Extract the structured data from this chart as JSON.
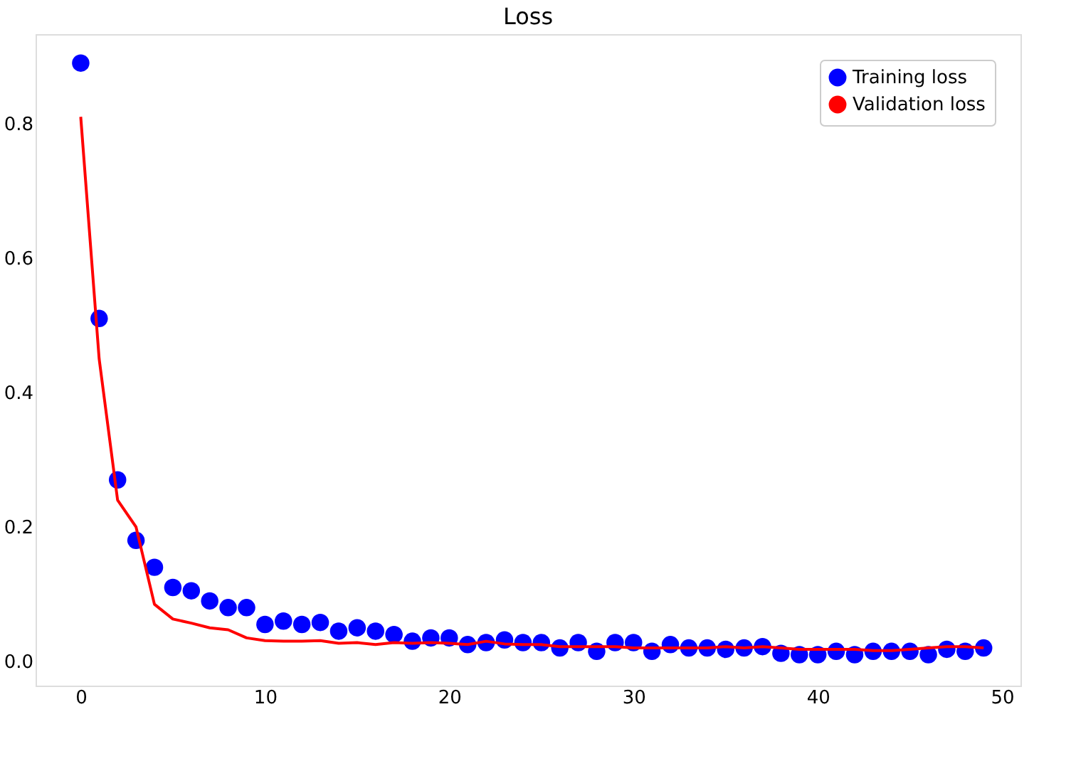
{
  "chart_data": {
    "type": "scatter",
    "title": "Loss",
    "x": [
      0,
      1,
      2,
      3,
      4,
      5,
      6,
      7,
      8,
      9,
      10,
      11,
      12,
      13,
      14,
      15,
      16,
      17,
      18,
      19,
      20,
      21,
      22,
      23,
      24,
      25,
      26,
      27,
      28,
      29,
      30,
      31,
      32,
      33,
      34,
      35,
      36,
      37,
      38,
      39,
      40,
      41,
      42,
      43,
      44,
      45,
      46,
      47,
      48,
      49
    ],
    "series": [
      {
        "name": "Training loss",
        "color": "#0000ff",
        "marker": "circle",
        "values": [
          0.89,
          0.51,
          0.27,
          0.18,
          0.14,
          0.11,
          0.105,
          0.09,
          0.08,
          0.08,
          0.055,
          0.06,
          0.055,
          0.058,
          0.045,
          0.05,
          0.045,
          0.04,
          0.03,
          0.035,
          0.035,
          0.025,
          0.028,
          0.032,
          0.028,
          0.028,
          0.02,
          0.028,
          0.015,
          0.028,
          0.028,
          0.015,
          0.025,
          0.02,
          0.02,
          0.018,
          0.02,
          0.022,
          0.012,
          0.01,
          0.01,
          0.015,
          0.01,
          0.015,
          0.015,
          0.015,
          0.01,
          0.018,
          0.015,
          0.02
        ]
      },
      {
        "name": "Validation loss",
        "color": "#ff0000",
        "type": "line",
        "line_style": "solid",
        "values": [
          0.81,
          0.45,
          0.24,
          0.2,
          0.085,
          0.063,
          0.057,
          0.05,
          0.047,
          0.035,
          0.031,
          0.03,
          0.03,
          0.031,
          0.027,
          0.028,
          0.025,
          0.028,
          0.027,
          0.028,
          0.027,
          0.025,
          0.03,
          0.026,
          0.025,
          0.025,
          0.022,
          0.022,
          0.022,
          0.022,
          0.02,
          0.02,
          0.02,
          0.02,
          0.02,
          0.022,
          0.02,
          0.022,
          0.02,
          0.018,
          0.018,
          0.018,
          0.018,
          0.016,
          0.016,
          0.018,
          0.02,
          0.022,
          0.022,
          0.02
        ]
      }
    ],
    "xlim": [
      -2.45,
      51
    ],
    "xticks": [
      0,
      10,
      20,
      30,
      40,
      50
    ],
    "ylim": [
      -0.036,
      0.933
    ],
    "yticks": [
      {
        "value": 0,
        "label": "0.0"
      },
      0.2,
      0.4,
      0.6,
      0.8
    ],
    "grid": false,
    "legend": "top right"
  }
}
